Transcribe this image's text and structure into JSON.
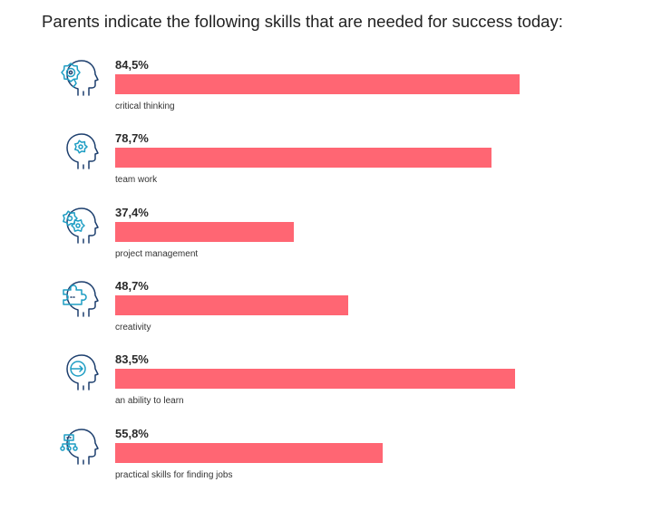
{
  "title": "Parents indicate the following skills that are needed for success today:",
  "chart_data": {
    "type": "bar",
    "orientation": "horizontal",
    "categories": [
      "critical thinking",
      "team work",
      "project management",
      "creativity",
      "an ability to learn",
      "practical skills for finding jobs"
    ],
    "values": [
      84.5,
      78.7,
      37.4,
      48.7,
      83.5,
      55.8
    ],
    "value_labels": [
      "84,5%",
      "78,7%",
      "37,4%",
      "48,7%",
      "83,5%",
      "55,8%"
    ],
    "icons": [
      "head-gear-target-icon",
      "head-gear-icon",
      "head-two-gears-icon",
      "head-puzzle-icon",
      "head-arrow-icon",
      "head-flowchart-icon"
    ],
    "xlim": [
      0,
      100
    ],
    "bar_color": "#ff6673",
    "title": "Parents indicate the following skills that are needed for success today:",
    "xlabel": "",
    "ylabel": ""
  }
}
